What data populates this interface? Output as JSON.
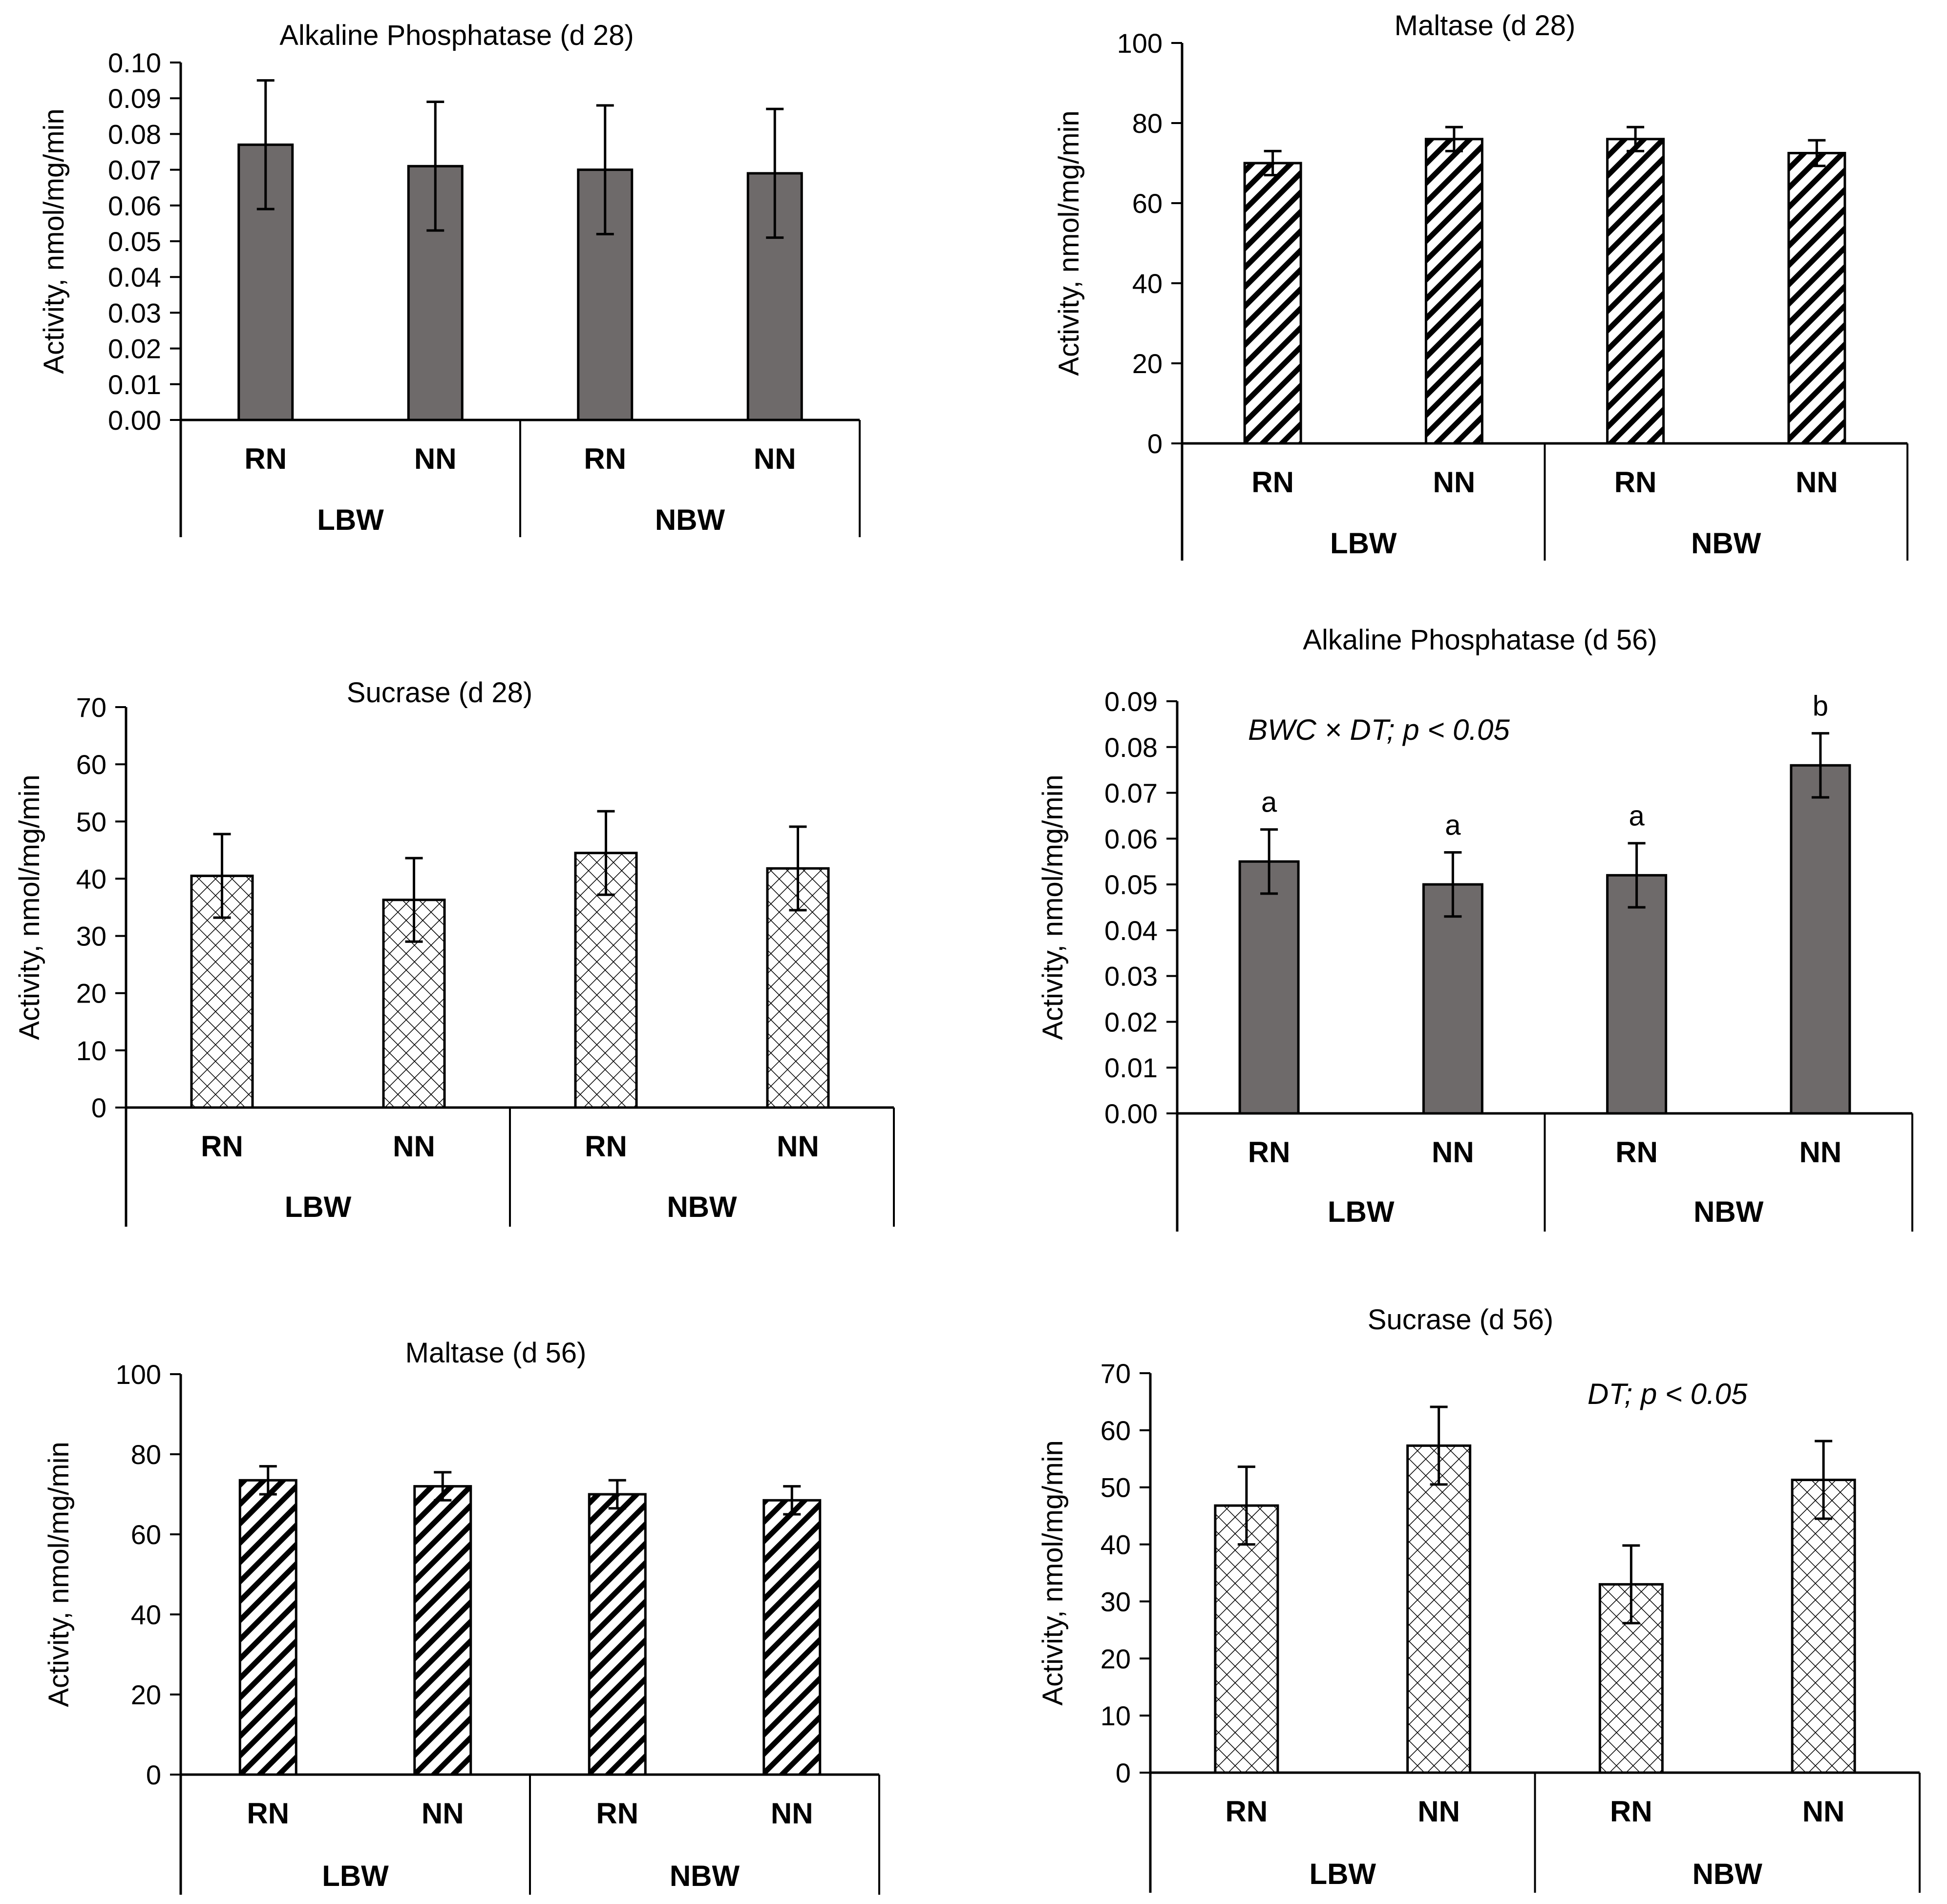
{
  "chart_data": [
    {
      "type": "bar",
      "title": "Alkaline Phosphatase (d 28)",
      "ylabel": "Activity, nmol/mg/min",
      "ylim": [
        0,
        0.1
      ],
      "yticks": [
        "0.00",
        "0.01",
        "0.02",
        "0.03",
        "0.04",
        "0.05",
        "0.06",
        "0.07",
        "0.08",
        "0.09",
        "0.10"
      ],
      "categories": [
        "RN",
        "NN",
        "RN",
        "NN"
      ],
      "groups": [
        "LBW",
        "NBW"
      ],
      "values": [
        0.077,
        0.071,
        0.07,
        0.069
      ],
      "errors": [
        0.018,
        0.018,
        0.018,
        0.018
      ],
      "pattern": "solid",
      "annotation": "",
      "labels": []
    },
    {
      "type": "bar",
      "title": "Maltase (d 28)",
      "ylabel": "Activity, nmol/mg/min",
      "ylim": [
        0,
        100
      ],
      "yticks": [
        "0",
        "20",
        "40",
        "60",
        "80",
        "100"
      ],
      "categories": [
        "RN",
        "NN",
        "RN",
        "NN"
      ],
      "groups": [
        "LBW",
        "NBW"
      ],
      "values": [
        70,
        76,
        76,
        72.5
      ],
      "errors": [
        3,
        3,
        3,
        3.2
      ],
      "pattern": "diagonal",
      "annotation": "",
      "labels": []
    },
    {
      "type": "bar",
      "title": "Sucrase (d 28)",
      "ylabel": "Activity, nmol/mg/min",
      "ylim": [
        0,
        70
      ],
      "yticks": [
        "0",
        "10",
        "20",
        "30",
        "40",
        "50",
        "60",
        "70"
      ],
      "categories": [
        "RN",
        "NN",
        "RN",
        "NN"
      ],
      "groups": [
        "LBW",
        "NBW"
      ],
      "values": [
        40.5,
        36.3,
        44.5,
        41.8
      ],
      "errors": [
        7.3,
        7.3,
        7.3,
        7.3
      ],
      "pattern": "crosshatch",
      "annotation": "",
      "labels": []
    },
    {
      "type": "bar",
      "title": "Alkaline Phosphatase (d 56)",
      "ylabel": "Activity, nmol/mg/min",
      "ylim": [
        0,
        0.09
      ],
      "yticks": [
        "0.00",
        "0.01",
        "0.02",
        "0.03",
        "0.04",
        "0.05",
        "0.06",
        "0.07",
        "0.08",
        "0.09"
      ],
      "categories": [
        "RN",
        "NN",
        "RN",
        "NN"
      ],
      "groups": [
        "LBW",
        "NBW"
      ],
      "values": [
        0.055,
        0.05,
        0.052,
        0.076
      ],
      "errors": [
        0.007,
        0.007,
        0.007,
        0.007
      ],
      "pattern": "solid",
      "annotation": "BWC × DT; p < 0.05",
      "labels": [
        "a",
        "a",
        "a",
        "b"
      ]
    },
    {
      "type": "bar",
      "title": "Maltase (d 56)",
      "ylabel": "Activity, nmol/mg/min",
      "ylim": [
        0,
        100
      ],
      "yticks": [
        "0",
        "20",
        "40",
        "60",
        "80",
        "100"
      ],
      "categories": [
        "RN",
        "NN",
        "RN",
        "NN"
      ],
      "groups": [
        "LBW",
        "NBW"
      ],
      "values": [
        73.5,
        72,
        70,
        68.5
      ],
      "errors": [
        3.5,
        3.5,
        3.5,
        3.5
      ],
      "pattern": "diagonal",
      "annotation": "",
      "labels": []
    },
    {
      "type": "bar",
      "title": "Sucrase (d 56)",
      "ylabel": "Activity, nmol/mg/min",
      "ylim": [
        0,
        70
      ],
      "yticks": [
        "0",
        "10",
        "20",
        "30",
        "40",
        "50",
        "60",
        "70"
      ],
      "categories": [
        "RN",
        "NN",
        "RN",
        "NN"
      ],
      "groups": [
        "LBW",
        "NBW"
      ],
      "values": [
        46.8,
        57.3,
        33,
        51.3
      ],
      "errors": [
        6.8,
        6.8,
        6.8,
        6.8
      ],
      "pattern": "crosshatch",
      "annotation": "DT; p < 0.05",
      "labels": []
    }
  ],
  "colors": {
    "bar_fill": "#6e6a6a",
    "axis": "#000000",
    "error_bar": "#000000",
    "pattern_background": "#ffffff"
  }
}
